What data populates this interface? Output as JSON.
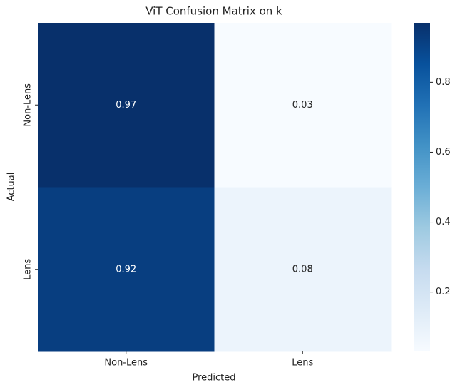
{
  "chart_data": {
    "type": "heatmap",
    "title": "ViT Confusion Matrix on k",
    "x_label": "Predicted",
    "y_label": "Actual",
    "x_categories": [
      "Non-Lens",
      "Lens"
    ],
    "y_categories": [
      "Non-Lens",
      "Lens"
    ],
    "values": [
      [
        0.97,
        0.03
      ],
      [
        0.92,
        0.08
      ]
    ],
    "colormap": [
      "#f7fbff",
      "#deebf7",
      "#c6dbef",
      "#9ecae1",
      "#6baed6",
      "#4292c6",
      "#2171b5",
      "#08519c",
      "#08306b"
    ],
    "clim": [
      0.03,
      0.97
    ],
    "cticks": [
      0.2,
      0.4,
      0.6,
      0.8
    ]
  }
}
